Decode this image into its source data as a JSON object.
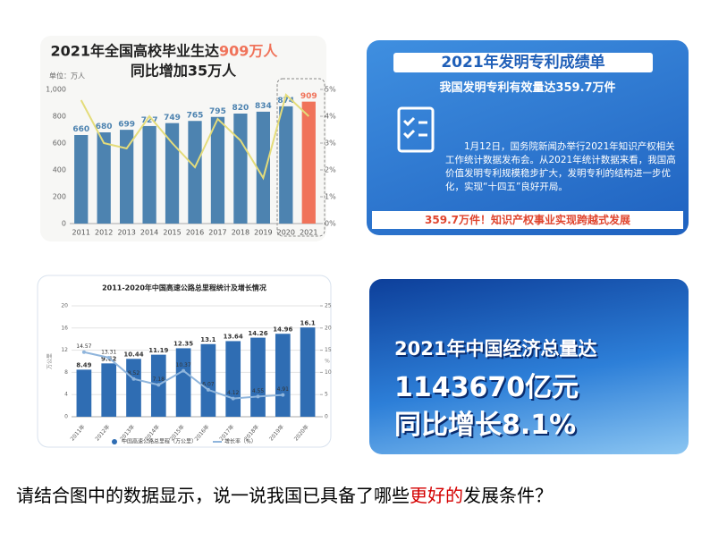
{
  "graduates": {
    "chart_data": {
      "type": "bar",
      "title": "2021年全国高校毕业生达",
      "title_highlight": "909万人",
      "subtitle": "同比增加35万人",
      "y_unit": "单位：万人",
      "categories": [
        "2011",
        "2012",
        "2013",
        "2014",
        "2015",
        "2016",
        "2017",
        "2018",
        "2019",
        "2020",
        "2021"
      ],
      "series": [
        {
          "type": "bar",
          "labels": true,
          "colors": [
            "#4d83b0",
            "#4d83b0",
            "#4d83b0",
            "#4d83b0",
            "#4d83b0",
            "#4d83b0",
            "#4d83b0",
            "#4d83b0",
            "#4d83b0",
            "#4d83b0",
            "#f0735a"
          ],
          "values": [
            660,
            680,
            699,
            727,
            749,
            765,
            795,
            820,
            834,
            874,
            909
          ]
        },
        {
          "type": "line",
          "axis": "y2",
          "labels": false,
          "color": "#e4dc7a",
          "values": [
            4.6,
            3.0,
            2.8,
            4.0,
            3.0,
            2.1,
            3.9,
            3.1,
            1.7,
            4.8,
            4.0
          ]
        }
      ],
      "ylim": [
        0,
        1000
      ],
      "yticks": [
        0,
        200,
        400,
        600,
        800,
        {
          "value": 1000,
          "label": "1,000"
        }
      ],
      "y2lim": [
        0,
        5
      ],
      "y2ticks": [
        {
          "value": 0,
          "label": "0%"
        },
        {
          "value": 1,
          "label": "1%"
        },
        {
          "value": 2,
          "label": "2%"
        },
        {
          "value": 3,
          "label": "3%"
        },
        {
          "value": 4,
          "label": "4%"
        },
        {
          "value": 5,
          "label": "5%"
        }
      ],
      "grid": false
    }
  },
  "patents": {
    "title": "2021年发明专利成绩单",
    "subtitle": "我国发明专利有效量达359.7万件",
    "body": "1月12日，国务院新闻办举行2021年知识产权相关工作统计数据发布会。从2021年统计数据来看，我国高价值发明专利规模稳步扩大，发明专利的结构进一步优化，实现“十四五”良好开局。",
    "footer": "359.7万件！知识产权事业实现跨越式发展"
  },
  "highways": {
    "chart_data": {
      "type": "bar",
      "title": "2011-2020年中国高速公路总里程统计及增长情况",
      "y_label": "万公里",
      "y2_label": "%",
      "categories": [
        "2011年",
        "2012年",
        "2013年",
        "2014年",
        "2015年",
        "2016年",
        "2017年",
        "2018年",
        "2019年",
        "2020年"
      ],
      "series": [
        {
          "type": "bar",
          "labels": true,
          "name": "中国高速公路总里程（万公里）",
          "color": "#2f6db3",
          "values": [
            8.49,
            9.62,
            10.44,
            11.19,
            12.35,
            13.1,
            13.64,
            14.26,
            14.96,
            16.1
          ]
        },
        {
          "type": "line",
          "axis": "y2",
          "labels": true,
          "name": "增长率（%）",
          "color": "#8fb5dc",
          "values": [
            14.57,
            13.31,
            8.52,
            7.18,
            10.37,
            6.07,
            4.12,
            4.55,
            4.91,
            null
          ]
        }
      ],
      "ylim": [
        0,
        20
      ],
      "yticks": [
        0,
        4,
        8,
        12,
        16,
        20
      ],
      "y2lim": [
        0,
        25
      ],
      "y2ticks": [
        0,
        5,
        10,
        15,
        20,
        25
      ],
      "grid": true,
      "legend": "bottom"
    }
  },
  "economy": {
    "line1": "2021年中国经济总量达",
    "line2": "1143670亿元",
    "line3": "同比增长8.1%"
  },
  "question": {
    "before": "请结合图中的数据显示，说一说我国已具备了哪些",
    "highlight": "更好的",
    "after": "发展条件？"
  }
}
